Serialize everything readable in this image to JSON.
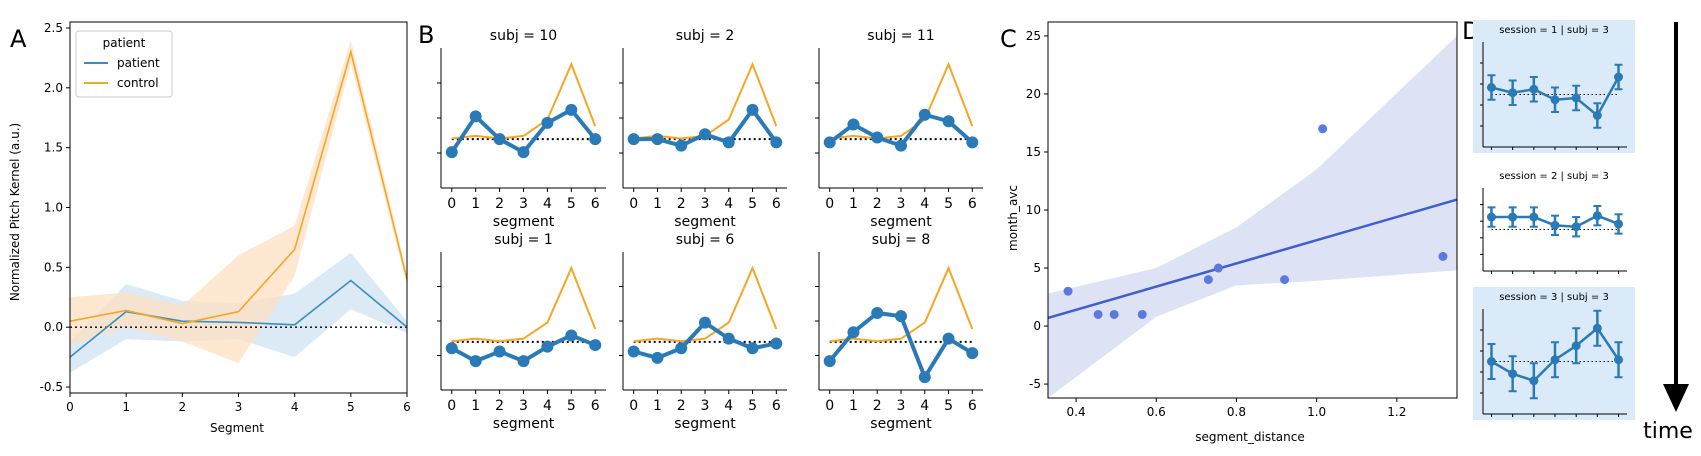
{
  "colors": {
    "patient": "#3b8ec4",
    "control": "#f5a623",
    "patient_band": "#cfe3f2",
    "control_band": "#fde0c2",
    "subject_line": "#2a7ab8",
    "regression_line": "#3f5fcf",
    "regression_band": "#dde2f5",
    "scatter": "#5d79e0",
    "subpanel_bg": "#dbeaf8",
    "dotted": "#000000"
  },
  "panel_labels": [
    "A",
    "B",
    "C",
    "D"
  ],
  "chart_data": [
    {
      "id": "A",
      "type": "line",
      "xlabel": "Segment",
      "ylabel": "Normalized Pitch Kernel (a.u.)",
      "xlim": [
        0,
        6
      ],
      "ylim": [
        -0.55,
        2.55
      ],
      "xticks": [
        "0",
        "1",
        "2",
        "3",
        "4",
        "5",
        "6"
      ],
      "yticks": [
        "-0.5",
        "0.0",
        "0.5",
        "1.0",
        "1.5",
        "2.0",
        "2.5"
      ],
      "legend": {
        "title": "patient",
        "entries": [
          "patient",
          "control"
        ],
        "placement": "top-left"
      },
      "reference_line": 0,
      "x": [
        0,
        1,
        2,
        3,
        4,
        5,
        6
      ],
      "series": [
        {
          "name": "patient",
          "values": [
            -0.25,
            0.13,
            0.05,
            0.04,
            0.02,
            0.39,
            0.0
          ],
          "lower": [
            -0.38,
            -0.1,
            -0.12,
            -0.1,
            -0.25,
            0.15,
            -0.05
          ],
          "upper": [
            -0.12,
            0.36,
            0.22,
            0.2,
            0.28,
            0.62,
            0.05
          ]
        },
        {
          "name": "control",
          "values": [
            0.05,
            0.14,
            0.03,
            0.13,
            0.65,
            2.3,
            0.4
          ],
          "lower": [
            -0.15,
            0.0,
            -0.12,
            -0.3,
            0.43,
            2.2,
            0.35
          ],
          "upper": [
            0.25,
            0.29,
            0.18,
            0.6,
            0.85,
            2.4,
            0.45
          ]
        }
      ]
    },
    {
      "id": "B",
      "type": "line",
      "xlabel": "segment",
      "xticks": [
        "0",
        "1",
        "2",
        "3",
        "4",
        "5",
        "6"
      ],
      "ylim": [
        -1.5,
        2.8
      ],
      "control_values": [
        0.02,
        0.1,
        0.02,
        0.1,
        0.6,
        2.3,
        0.4
      ],
      "subplots": [
        {
          "title": "subj = 10",
          "values": [
            -0.4,
            0.7,
            0.0,
            -0.4,
            0.5,
            0.9,
            0.0
          ]
        },
        {
          "title": "subj = 2",
          "values": [
            0.0,
            0.0,
            -0.2,
            0.15,
            -0.1,
            0.9,
            -0.1
          ]
        },
        {
          "title": "subj = 11",
          "values": [
            -0.1,
            0.45,
            0.05,
            -0.2,
            0.75,
            0.55,
            -0.1
          ]
        },
        {
          "title": "subj = 1",
          "values": [
            -0.2,
            -0.6,
            -0.3,
            -0.6,
            -0.15,
            0.2,
            -0.1
          ]
        },
        {
          "title": "subj = 6",
          "values": [
            -0.3,
            -0.5,
            -0.2,
            0.6,
            0.1,
            -0.2,
            -0.05
          ]
        },
        {
          "title": "subj = 8",
          "values": [
            -0.6,
            0.3,
            0.9,
            0.8,
            -1.1,
            0.1,
            -0.35
          ]
        }
      ]
    },
    {
      "id": "C",
      "type": "scatter",
      "xlabel": "segment_distance",
      "ylabel": "month_avc",
      "xlim": [
        0.33,
        1.35
      ],
      "ylim": [
        -6.2,
        26.2
      ],
      "xticks": [
        "0.4",
        "0.6",
        "0.8",
        "1.0",
        "1.2"
      ],
      "yticks": [
        "-5",
        "0",
        "5",
        "10",
        "15",
        "20",
        "25"
      ],
      "points": [
        {
          "x": 0.38,
          "y": 3
        },
        {
          "x": 0.455,
          "y": 1
        },
        {
          "x": 0.495,
          "y": 1
        },
        {
          "x": 0.565,
          "y": 1
        },
        {
          "x": 0.73,
          "y": 4
        },
        {
          "x": 0.755,
          "y": 5
        },
        {
          "x": 0.92,
          "y": 4
        },
        {
          "x": 1.015,
          "y": 17
        },
        {
          "x": 1.315,
          "y": 6
        }
      ],
      "regression": {
        "x0": 0.33,
        "y0": 0.7,
        "x1": 1.35,
        "y1": 10.9
      },
      "band_lower": [
        [
          0.33,
          -6.2
        ],
        [
          0.6,
          0.8
        ],
        [
          0.8,
          3.5
        ],
        [
          1.0,
          3.9
        ],
        [
          1.35,
          4.8
        ]
      ],
      "band_upper": [
        [
          0.33,
          2.8
        ],
        [
          0.6,
          5.0
        ],
        [
          0.8,
          8.5
        ],
        [
          1.0,
          13.5
        ],
        [
          1.35,
          25.0
        ]
      ]
    },
    {
      "id": "D",
      "type": "line",
      "time_label": "time",
      "ylim": [
        -1.5,
        1.5
      ],
      "subplots": [
        {
          "title": "session = 1 | subj = 3",
          "highlight": true,
          "values": [
            0.2,
            0.05,
            0.15,
            -0.15,
            -0.1,
            -0.6,
            0.5
          ],
          "err": [
            0.35,
            0.35,
            0.35,
            0.35,
            0.35,
            0.35,
            0.35
          ]
        },
        {
          "title": "session = 2 | subj = 3",
          "highlight": false,
          "values": [
            0.45,
            0.45,
            0.45,
            0.15,
            0.1,
            0.5,
            0.2
          ],
          "err": [
            0.35,
            0.35,
            0.35,
            0.35,
            0.35,
            0.35,
            0.35
          ]
        },
        {
          "title": "session = 3 | subj = 3",
          "highlight": true,
          "values": [
            0.0,
            -0.35,
            -0.55,
            0.05,
            0.45,
            0.95,
            0.05
          ],
          "err": [
            0.5,
            0.5,
            0.5,
            0.5,
            0.5,
            0.5,
            0.5
          ]
        }
      ]
    }
  ]
}
